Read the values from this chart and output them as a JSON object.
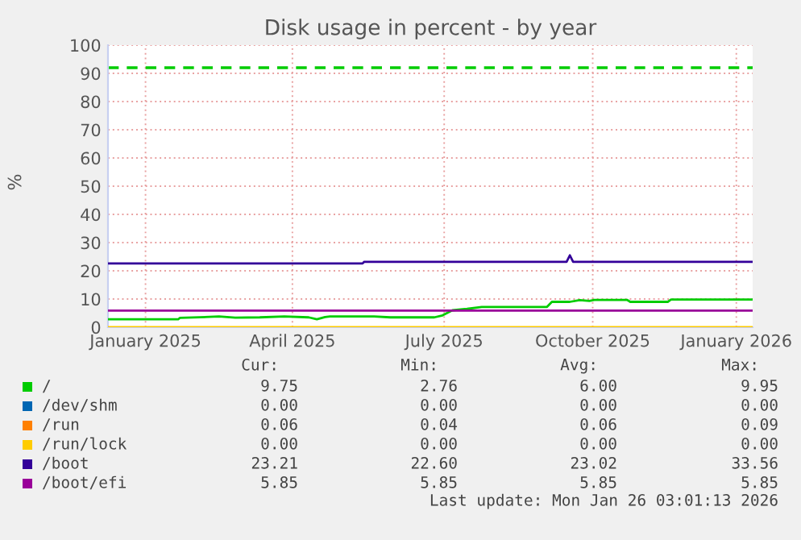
{
  "chart_data": {
    "type": "line",
    "title": "Disk usage in percent - by year",
    "ylabel": "%",
    "xlim": [
      "2024-12-26",
      "2026-01-25"
    ],
    "xticks": [
      {
        "value": "2025-01-18",
        "label": "January 2025"
      },
      {
        "value": "2025-04-18",
        "label": "April 2025"
      },
      {
        "value": "2025-07-20",
        "label": "July 2025"
      },
      {
        "value": "2025-10-19",
        "label": "October 2025"
      },
      {
        "value": "2026-01-15",
        "label": "January 2026"
      }
    ],
    "ylim": [
      0,
      100
    ],
    "yticks": [
      0,
      10,
      20,
      30,
      40,
      50,
      60,
      70,
      80,
      90,
      100
    ],
    "grid": true,
    "legend": "bottom",
    "line_style": "solid",
    "marker": "none",
    "ref_lines": [
      {
        "axis": "y",
        "value": 92,
        "label": null,
        "color": "#00cc00",
        "line_style": "dashed"
      }
    ],
    "series": [
      {
        "name": "/",
        "color": "#00cc00",
        "x": [
          "2024-12-26",
          "2025-02-07",
          "2025-02-08",
          "2025-03-04",
          "2025-03-14",
          "2025-03-29",
          "2025-04-13",
          "2025-04-28",
          "2025-05-03",
          "2025-05-08",
          "2025-05-11",
          "2025-06-07",
          "2025-06-17",
          "2025-07-14",
          "2025-07-19",
          "2025-07-25",
          "2025-08-03",
          "2025-08-12",
          "2025-09-21",
          "2025-09-24",
          "2025-10-05",
          "2025-10-11",
          "2025-10-17",
          "2025-10-20",
          "2025-11-09",
          "2025-11-11",
          "2025-12-04",
          "2025-12-06",
          "2026-01-25"
        ],
        "values": [
          2.8,
          2.8,
          3.3,
          3.8,
          3.4,
          3.5,
          3.8,
          3.5,
          2.8,
          3.6,
          3.8,
          3.8,
          3.5,
          3.5,
          4.2,
          6.0,
          6.5,
          7.2,
          7.2,
          9.0,
          9.0,
          9.6,
          9.3,
          9.7,
          9.7,
          9.0,
          9.0,
          9.8,
          9.8
        ]
      },
      {
        "name": "/dev/shm",
        "color": "#0066b3"
      },
      {
        "name": "/run",
        "color": "#ff8000"
      },
      {
        "name": "/run/lock",
        "color": "#ffcc00",
        "x": [
          "2024-12-26",
          "2026-01-25"
        ],
        "values": [
          0,
          0
        ]
      },
      {
        "name": "/boot",
        "color": "#330099",
        "x": [
          "2024-12-26",
          "2025-05-31",
          "2025-06-01",
          "2025-10-03",
          "2025-10-05",
          "2025-10-07",
          "2026-01-25"
        ],
        "values": [
          22.6,
          22.6,
          23.2,
          23.2,
          25.5,
          23.2,
          23.2
        ]
      },
      {
        "name": "/boot/efi",
        "color": "#990099",
        "x": [
          "2024-12-26",
          "2026-01-25"
        ],
        "values": [
          5.9,
          5.9
        ]
      }
    ],
    "annotations": [
      "Cur:",
      "Min:",
      "Avg:",
      "Max:",
      "9.75",
      "2.76",
      "6.00",
      "9.95",
      "0.00",
      "0.00",
      "0.00",
      "0.00",
      "0.06",
      "0.04",
      "0.06",
      "0.09",
      "0.00",
      "0.00",
      "0.00",
      "0.00",
      "23.21",
      "22.60",
      "23.02",
      "33.56",
      "5.85",
      "5.85",
      "5.85",
      "5.85",
      "Last update: Mon Jan 26 03:01:13 2026"
    ]
  }
}
